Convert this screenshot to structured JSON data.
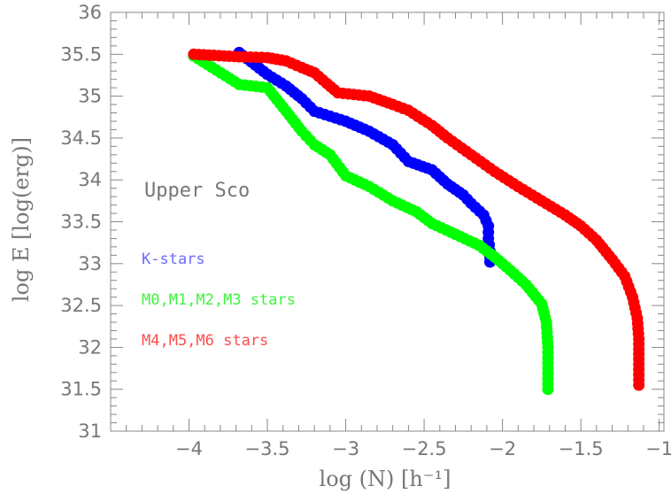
{
  "chart_data": {
    "type": "scatter",
    "xlabel": "log (N) [h⁻¹]",
    "ylabel": "log E [log(erg)]",
    "xlim": [
      -4.5,
      -0.97
    ],
    "ylim": [
      31,
      36
    ],
    "x_ticks": [
      -4,
      -3.5,
      -3,
      -2.5,
      -2,
      -1.5,
      -1
    ],
    "x_tick_labels": [
      "−4",
      "−3.5",
      "−3",
      "−2.5",
      "−2",
      "−1.5",
      "−1"
    ],
    "y_ticks": [
      31,
      31.5,
      32,
      32.5,
      33,
      33.5,
      34,
      34.5,
      35,
      35.5,
      36
    ],
    "y_tick_labels": [
      "31",
      "31.5",
      "32",
      "32.5",
      "33",
      "33.5",
      "34",
      "34.5",
      "35",
      "35.5",
      "36"
    ],
    "grid": false,
    "annotations": [
      {
        "text": "Upper Sco",
        "color": "#777777"
      },
      {
        "text": "K-stars",
        "color": "#6b6bff"
      },
      {
        "text": "M0,M1,M2,M3 stars",
        "color": "#3df53d"
      },
      {
        "text": "M4,M5,M6 stars",
        "color": "#ff4c4c"
      }
    ],
    "series": [
      {
        "name": "K-stars",
        "color": "#0000ff",
        "curve": [
          [
            -3.68,
            35.52
          ],
          [
            -3.5,
            35.26
          ],
          [
            -3.38,
            35.12
          ],
          [
            -3.28,
            34.97
          ],
          [
            -3.2,
            34.82
          ],
          [
            -3.0,
            34.7
          ],
          [
            -2.85,
            34.58
          ],
          [
            -2.7,
            34.42
          ],
          [
            -2.6,
            34.22
          ],
          [
            -2.45,
            34.12
          ],
          [
            -2.35,
            33.95
          ],
          [
            -2.25,
            33.82
          ],
          [
            -2.2,
            33.72
          ],
          [
            -2.12,
            33.58
          ],
          [
            -2.09,
            33.45
          ],
          [
            -2.09,
            33.3
          ],
          [
            -2.08,
            33.15
          ],
          [
            -2.08,
            33.02
          ]
        ]
      },
      {
        "name": "M0,M1,M2,M3 stars",
        "color": "#00ff00",
        "curve": [
          [
            -3.97,
            35.48
          ],
          [
            -3.68,
            35.14
          ],
          [
            -3.5,
            35.1
          ],
          [
            -3.38,
            34.82
          ],
          [
            -3.28,
            34.58
          ],
          [
            -3.2,
            34.42
          ],
          [
            -3.1,
            34.3
          ],
          [
            -3.0,
            34.05
          ],
          [
            -2.85,
            33.92
          ],
          [
            -2.7,
            33.75
          ],
          [
            -2.55,
            33.62
          ],
          [
            -2.45,
            33.48
          ],
          [
            -2.3,
            33.35
          ],
          [
            -2.15,
            33.22
          ],
          [
            -2.05,
            33.08
          ],
          [
            -1.95,
            32.92
          ],
          [
            -1.85,
            32.75
          ],
          [
            -1.75,
            32.52
          ],
          [
            -1.72,
            32.3
          ],
          [
            -1.71,
            32.0
          ],
          [
            -1.71,
            31.75
          ],
          [
            -1.71,
            31.5
          ]
        ]
      },
      {
        "name": "M4,M5,M6 stars",
        "color": "#ff0000",
        "curve": [
          [
            -3.97,
            35.5
          ],
          [
            -3.68,
            35.47
          ],
          [
            -3.5,
            35.46
          ],
          [
            -3.38,
            35.42
          ],
          [
            -3.28,
            35.34
          ],
          [
            -3.2,
            35.28
          ],
          [
            -3.12,
            35.15
          ],
          [
            -3.05,
            35.04
          ],
          [
            -2.85,
            35.0
          ],
          [
            -2.7,
            34.9
          ],
          [
            -2.6,
            34.83
          ],
          [
            -2.45,
            34.65
          ],
          [
            -2.35,
            34.5
          ],
          [
            -2.2,
            34.3
          ],
          [
            -2.05,
            34.1
          ],
          [
            -1.9,
            33.92
          ],
          [
            -1.75,
            33.75
          ],
          [
            -1.6,
            33.58
          ],
          [
            -1.5,
            33.45
          ],
          [
            -1.4,
            33.28
          ],
          [
            -1.3,
            33.05
          ],
          [
            -1.22,
            32.85
          ],
          [
            -1.17,
            32.6
          ],
          [
            -1.14,
            32.35
          ],
          [
            -1.13,
            32.1
          ],
          [
            -1.13,
            31.8
          ],
          [
            -1.13,
            31.55
          ]
        ]
      }
    ]
  }
}
